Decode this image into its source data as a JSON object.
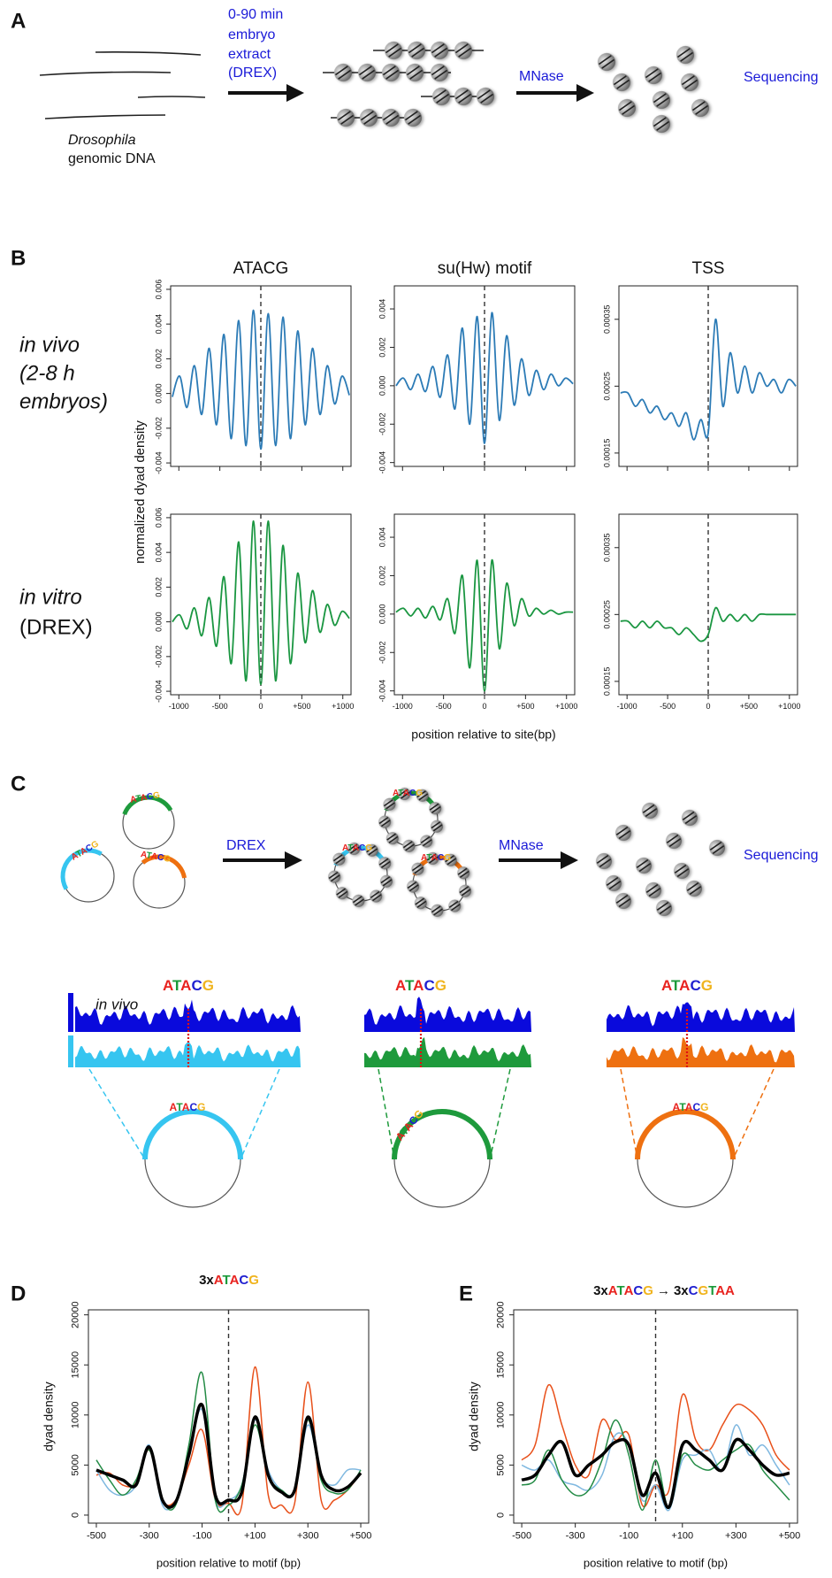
{
  "letter_colors": {
    "A": "#e8231f",
    "T": "#1a9a3a",
    "C": "#2020d0",
    "G": "#f0b41e"
  },
  "panel_a": {
    "label": "A",
    "extract": [
      "0-90 min",
      "embryo",
      "extract",
      "(DREX)"
    ],
    "dna": [
      "Drosophila",
      "genomic DNA"
    ],
    "mnase": "MNase",
    "sequencing": "Sequencing"
  },
  "panel_b": {
    "label": "B",
    "columns": [
      "ATACG",
      "su(Hw) motif",
      "TSS"
    ],
    "rows": [
      {
        "label": [
          "in vivo",
          "(2-8 h",
          "embryos)"
        ],
        "color": "#2c7bb6"
      },
      {
        "label": [
          "in vitro",
          "(DREX)"
        ],
        "color": "#1a9641"
      }
    ],
    "ylabel": "normalized dyad density",
    "xlabel": "position relative to site(bp)",
    "x": [
      -1080,
      -990,
      -900,
      -810,
      -720,
      -630,
      -540,
      -450,
      -360,
      -270,
      -180,
      -90,
      0,
      90,
      180,
      270,
      360,
      450,
      540,
      630,
      720,
      810,
      900,
      990,
      1080
    ],
    "xlim": [
      -1100,
      1100
    ],
    "xticks": [
      -1000,
      -500,
      0,
      {
        "value": 500,
        "label": "+500"
      },
      {
        "value": 1000,
        "label": "+1000"
      }
    ],
    "vline": 0,
    "charts": [
      {
        "ylim": [
          -0.0042,
          0.0062
        ],
        "yticks": [
          -0.004,
          -0.002,
          {
            "value": 0,
            "label": "0.000"
          },
          0.002,
          0.004,
          0.006
        ],
        "values": [
          -0.0002,
          0.001,
          -0.0008,
          0.0016,
          -0.0012,
          0.0026,
          -0.0018,
          0.0034,
          -0.0026,
          0.0042,
          -0.003,
          0.0048,
          -0.0032,
          0.0046,
          -0.003,
          0.0044,
          -0.0026,
          0.0036,
          -0.0018,
          0.0026,
          -0.0012,
          0.0016,
          -0.0006,
          0.001,
          -0.0001
        ]
      },
      {
        "ylim": [
          -0.0042,
          0.0052
        ],
        "yticks": [
          -0.004,
          -0.002,
          {
            "value": 0,
            "label": "0.000"
          },
          0.002,
          0.004
        ],
        "values": [
          0,
          0.0004,
          -0.0002,
          0.0006,
          -0.0003,
          0.001,
          -0.0006,
          0.0016,
          -0.0012,
          0.003,
          -0.002,
          0.0036,
          -0.003,
          0.0038,
          -0.0018,
          0.0026,
          -0.001,
          0.0014,
          -0.0005,
          0.0008,
          -0.0002,
          0.0006,
          0,
          0.0004,
          0.0001
        ]
      },
      {
        "ylim": [
          0.00013,
          0.0004
        ],
        "yticks": [
          0.00015,
          0.00025,
          0.00035
        ],
        "values": [
          0.00024,
          0.00024,
          0.00022,
          0.00023,
          0.00021,
          0.00022,
          0.0002,
          0.00021,
          0.00019,
          0.00021,
          0.00017,
          0.0002,
          0.00018,
          0.00035,
          0.00022,
          0.0003,
          0.00024,
          0.00028,
          0.00024,
          0.00027,
          0.00025,
          0.00026,
          0.00024,
          0.00026,
          0.00025
        ]
      },
      {
        "ylim": [
          -0.0042,
          0.0062
        ],
        "yticks": [
          -0.004,
          -0.002,
          {
            "value": 0,
            "label": "0.000"
          },
          0.002,
          0.004,
          0.006
        ],
        "values": [
          0,
          0.0004,
          -0.0004,
          0.0008,
          -0.0008,
          0.0014,
          -0.0014,
          0.0026,
          -0.0024,
          0.0046,
          -0.0034,
          0.0058,
          -0.0036,
          0.0058,
          -0.0034,
          0.0044,
          -0.0024,
          0.0028,
          -0.0012,
          0.0018,
          -0.0006,
          0.001,
          -0.0002,
          0.0006,
          0.0002
        ]
      },
      {
        "ylim": [
          -0.0042,
          0.0052
        ],
        "yticks": [
          -0.004,
          -0.002,
          {
            "value": 0,
            "label": "0.000"
          },
          0.002,
          0.004
        ],
        "values": [
          0.0001,
          0.0003,
          -0.0001,
          0.0003,
          -0.0002,
          0.0004,
          -0.0003,
          0.0008,
          -0.001,
          0.002,
          -0.0028,
          0.0028,
          -0.004,
          0.0028,
          -0.0018,
          0.0016,
          -0.0006,
          0.0008,
          -0.0001,
          0.0003,
          0,
          0.0002,
          0,
          0.0001,
          0.0001
        ]
      },
      {
        "ylim": [
          0.00013,
          0.0004
        ],
        "yticks": [
          0.00015,
          0.00025,
          0.00035
        ],
        "values": [
          0.00024,
          0.00024,
          0.00023,
          0.00024,
          0.00023,
          0.00024,
          0.00023,
          0.00023,
          0.00022,
          0.00023,
          0.00022,
          0.00021,
          0.00022,
          0.00026,
          0.00024,
          0.00025,
          0.00024,
          0.00025,
          0.00024,
          0.00025,
          0.00025,
          0.00025,
          0.00025,
          0.00025,
          0.00025
        ]
      }
    ]
  },
  "panel_c": {
    "label": "C",
    "motif": [
      "A",
      "T",
      "A",
      "C",
      "G"
    ],
    "drex": "DREX",
    "mnase": "MNase",
    "sequencing": "Sequencing",
    "in_vivo": "in vivo",
    "in_vivo_color": "#0a0adc",
    "plasmid_colors": [
      "#36c5f0",
      "#1e9a3c",
      "#ee7010"
    ]
  },
  "panel_d": {
    "label": "D",
    "title": {
      "prefix": "3x",
      "motif": [
        "A",
        "T",
        "A",
        "C",
        "G"
      ]
    },
    "ylabel": "dyad density",
    "xlabel": "position relative to motif (bp)",
    "x": [
      -500,
      -450,
      -400,
      -350,
      -300,
      -250,
      -200,
      -150,
      -100,
      -50,
      0,
      50,
      100,
      150,
      200,
      250,
      300,
      350,
      400,
      450,
      500
    ],
    "xlim": [
      -530,
      530
    ],
    "xticks": [
      -500,
      -300,
      -100,
      {
        "value": 100,
        "label": "+100"
      },
      {
        "value": 300,
        "label": "+300"
      },
      {
        "value": 500,
        "label": "+500"
      }
    ],
    "ylim": [
      -800,
      20500
    ],
    "yticks": [
      0,
      5000,
      10000,
      15000,
      20000
    ],
    "vline": 0,
    "series": [
      {
        "color": "#e8501a",
        "line_width": 1.5,
        "values": [
          4000,
          4200,
          3000,
          3200,
          6500,
          1500,
          1500,
          5000,
          8500,
          1500,
          1200,
          1000,
          14800,
          2000,
          1000,
          1200,
          13300,
          1500,
          1500,
          2500,
          4200
        ]
      },
      {
        "color": "#7fb8e0",
        "line_width": 1.5,
        "values": [
          4500,
          2500,
          2000,
          3000,
          7000,
          1000,
          1500,
          6000,
          10500,
          1500,
          1500,
          3000,
          9500,
          4500,
          2500,
          2500,
          9000,
          4000,
          3000,
          4500,
          4500
        ]
      },
      {
        "color": "#238b45",
        "line_width": 1.5,
        "values": [
          5500,
          3500,
          2000,
          3500,
          6500,
          1500,
          1000,
          7000,
          14200,
          1500,
          1000,
          3000,
          9000,
          4000,
          2500,
          2500,
          9500,
          3500,
          2200,
          2500,
          4500
        ]
      },
      {
        "color": "#000000",
        "line_width": 3.5,
        "values": [
          4500,
          4000,
          3500,
          3000,
          6800,
          1500,
          1300,
          6000,
          11000,
          2000,
          1500,
          2300,
          9800,
          4000,
          2300,
          2500,
          9800,
          4000,
          2500,
          2800,
          4200
        ]
      }
    ]
  },
  "panel_e": {
    "label": "E",
    "title": {
      "prefix": "3x",
      "motif": [
        "A",
        "T",
        "A",
        "C",
        "G"
      ],
      "arrow": "→",
      "prefix2": "3x",
      "motif2": [
        "C",
        "G",
        "T",
        "A",
        "A"
      ]
    },
    "ylabel": "dyad density",
    "xlabel": "position relative to motif (bp)",
    "x": [
      -500,
      -450,
      -400,
      -350,
      -300,
      -250,
      -200,
      -150,
      -100,
      -50,
      0,
      50,
      100,
      150,
      200,
      250,
      300,
      350,
      400,
      450,
      500
    ],
    "xlim": [
      -530,
      530
    ],
    "xticks": [
      -500,
      -300,
      -100,
      {
        "value": 100,
        "label": "+100"
      },
      {
        "value": 300,
        "label": "+300"
      },
      {
        "value": 500,
        "label": "+500"
      }
    ],
    "ylim": [
      -800,
      20500
    ],
    "yticks": [
      0,
      5000,
      10000,
      15000,
      20000
    ],
    "vline": 0,
    "series": [
      {
        "color": "#e8501a",
        "line_width": 1.5,
        "values": [
          5500,
          7000,
          13000,
          9000,
          5000,
          4000,
          9500,
          7500,
          8000,
          1000,
          3000,
          2500,
          12000,
          7500,
          6500,
          9000,
          11000,
          10500,
          9000,
          6000,
          4500
        ]
      },
      {
        "color": "#7fb8e0",
        "line_width": 1.5,
        "values": [
          5000,
          4500,
          5500,
          3500,
          3000,
          2500,
          4000,
          8000,
          7000,
          1500,
          3000,
          500,
          5500,
          6000,
          6500,
          4500,
          9000,
          6000,
          7000,
          5000,
          3000
        ]
      },
      {
        "color": "#238b45",
        "line_width": 1.5,
        "values": [
          3000,
          3500,
          6500,
          3500,
          2000,
          2500,
          5500,
          9500,
          6000,
          500,
          5500,
          700,
          6000,
          5000,
          4500,
          5500,
          6500,
          7000,
          4500,
          3000,
          1500
        ]
      },
      {
        "color": "#000000",
        "line_width": 3.5,
        "values": [
          3500,
          4000,
          6000,
          7300,
          4000,
          5000,
          6000,
          7300,
          7000,
          2000,
          4200,
          800,
          7000,
          6500,
          5500,
          4500,
          7500,
          6500,
          5000,
          4000,
          4200
        ]
      }
    ]
  }
}
